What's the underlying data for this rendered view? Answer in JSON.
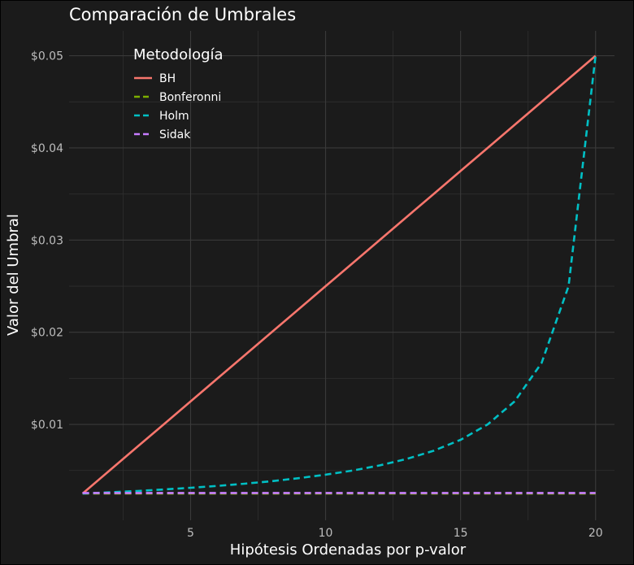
{
  "chart_data": {
    "type": "line",
    "title": "Comparación de Umbrales",
    "xlabel": "Hipótesis Ordenadas por p-valor",
    "ylabel": "Valor del Umbral",
    "x": [
      1,
      2,
      3,
      4,
      5,
      6,
      7,
      8,
      9,
      10,
      11,
      12,
      13,
      14,
      15,
      16,
      17,
      18,
      19,
      20
    ],
    "xlim": [
      0.5,
      20.7
    ],
    "ylim": [
      -0.0004,
      0.0527
    ],
    "x_ticks": [
      5,
      10,
      15,
      20
    ],
    "x_tick_labels": [
      "5",
      "10",
      "15",
      "20"
    ],
    "y_ticks": [
      0.01,
      0.02,
      0.03,
      0.04,
      0.05
    ],
    "y_tick_labels": [
      "$0.01",
      "$0.02",
      "$0.03",
      "$0.04",
      "$0.05"
    ],
    "grid": true,
    "legend": {
      "title": "Metodología",
      "position": "top-left"
    },
    "series": [
      {
        "name": "BH",
        "color": "#f8766d",
        "dashed": false,
        "values": [
          0.0025,
          0.005,
          0.0075,
          0.01,
          0.0125,
          0.015,
          0.0175,
          0.02,
          0.0225,
          0.025,
          0.0275,
          0.03,
          0.0325,
          0.035,
          0.0375,
          0.04,
          0.0425,
          0.045,
          0.0475,
          0.05
        ]
      },
      {
        "name": "Bonferonni",
        "color": "#7cae00",
        "dashed": true,
        "values": [
          0.0025,
          0.0025,
          0.0025,
          0.0025,
          0.0025,
          0.0025,
          0.0025,
          0.0025,
          0.0025,
          0.0025,
          0.0025,
          0.0025,
          0.0025,
          0.0025,
          0.0025,
          0.0025,
          0.0025,
          0.0025,
          0.0025,
          0.0025
        ]
      },
      {
        "name": "Holm",
        "color": "#00bfc4",
        "dashed": true,
        "values": [
          0.0025,
          0.002632,
          0.002778,
          0.002941,
          0.003125,
          0.003333,
          0.003571,
          0.003846,
          0.004167,
          0.004545,
          0.005,
          0.005556,
          0.00625,
          0.007143,
          0.008333,
          0.01,
          0.0125,
          0.016667,
          0.025,
          0.05
        ]
      },
      {
        "name": "Sidak",
        "color": "#c77cff",
        "dashed": true,
        "values": [
          0.002561,
          0.002561,
          0.002561,
          0.002561,
          0.002561,
          0.002561,
          0.002561,
          0.002561,
          0.002561,
          0.002561,
          0.002561,
          0.002561,
          0.002561,
          0.002561,
          0.002561,
          0.002561,
          0.002561,
          0.002561,
          0.002561,
          0.002561
        ]
      }
    ]
  }
}
